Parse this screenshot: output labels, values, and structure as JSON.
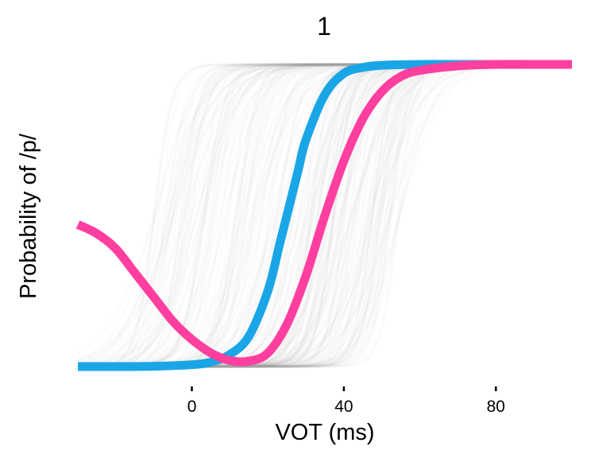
{
  "chart_data": {
    "type": "line",
    "title": "1",
    "xlabel": "VOT (ms)",
    "ylabel": "Probability of /p/",
    "xlim": [
      -30,
      100
    ],
    "ylim": [
      0,
      1
    ],
    "x_ticks": [
      0,
      40,
      80
    ],
    "y_ticks_shown": false,
    "grid": false,
    "legend": "none",
    "background_band": {
      "description": "many faint grey logistic sample curves",
      "color": "#9a9a9a",
      "boundary_range": [
        -10,
        55
      ],
      "slope_range": [
        0.15,
        0.45
      ]
    },
    "series": [
      {
        "color": "#1aa6e6",
        "x": [
          -30,
          -20,
          -10,
          0,
          5,
          10,
          15,
          20,
          23,
          25,
          28,
          30,
          35,
          40,
          45,
          50,
          60,
          70,
          80,
          90,
          100
        ],
        "y": [
          0.0,
          0.0,
          0.001,
          0.006,
          0.015,
          0.04,
          0.1,
          0.25,
          0.4,
          0.5,
          0.65,
          0.75,
          0.9,
          0.97,
          0.99,
          0.997,
          1.0,
          1.0,
          1.0,
          1.0,
          1.0
        ]
      },
      {
        "color": "#ff3fa0",
        "x": [
          -30,
          -25,
          -20,
          -15,
          -10,
          -5,
          0,
          5,
          10,
          15,
          20,
          25,
          30,
          35,
          40,
          45,
          50,
          55,
          60,
          70,
          80,
          90,
          100
        ],
        "y": [
          0.47,
          0.44,
          0.39,
          0.31,
          0.23,
          0.15,
          0.09,
          0.045,
          0.02,
          0.018,
          0.045,
          0.14,
          0.3,
          0.5,
          0.68,
          0.82,
          0.91,
          0.96,
          0.98,
          0.995,
          1.0,
          1.0,
          1.0
        ]
      }
    ]
  }
}
